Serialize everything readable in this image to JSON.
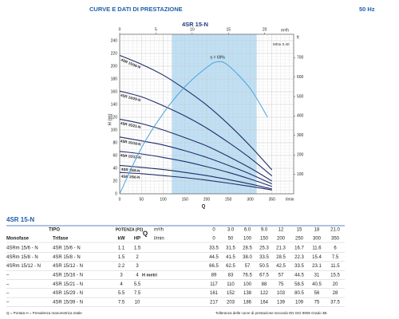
{
  "header": {
    "title": "CURVE E DATI DI PRESTAZIONE",
    "frequency": "50 Hz"
  },
  "chart_data": {
    "type": "line",
    "title": "4SR 15-N",
    "x_label": "Q",
    "x_unit": "l/min",
    "y_label": "H (m)",
    "y2_label": "ft",
    "x2_unit": "m³/h",
    "annotation": "MEI≥ 0.40",
    "x": [
      0,
      50,
      100,
      150,
      200,
      250,
      300,
      350
    ],
    "xlim": [
      0,
      400
    ],
    "xticks": [
      0,
      50,
      100,
      150,
      200,
      250,
      300,
      350
    ],
    "ylim": [
      0,
      240
    ],
    "yticks": [
      0,
      20,
      40,
      60,
      80,
      100,
      120,
      140,
      160,
      180,
      200,
      220,
      240
    ],
    "y2lim": [
      0,
      787
    ],
    "y2ticks": [
      100,
      200,
      300,
      400,
      500,
      600,
      700
    ],
    "x2lim": [
      0,
      24
    ],
    "x2ticks": [
      0,
      5,
      10,
      15,
      20
    ],
    "grid": true,
    "shaded_range": [
      120,
      315
    ],
    "shaded_color": "#bfe0f5",
    "series": [
      {
        "name": "4SR 15/39-N",
        "color": "#1f2d6b",
        "values": [
          217,
          203,
          186,
          164,
          139,
          109,
          75,
          37.5
        ]
      },
      {
        "name": "4SR 15/29-N",
        "color": "#1f2d6b",
        "values": [
          161,
          152,
          138,
          122,
          103,
          80.5,
          56,
          28
        ]
      },
      {
        "name": "4SR 15/21-N",
        "color": "#1f2d6b",
        "values": [
          117,
          110,
          100,
          88,
          75,
          58.5,
          40.5,
          20
        ]
      },
      {
        "name": "4SR 15/16-N",
        "color": "#1f2d6b",
        "values": [
          89,
          83,
          76.5,
          67.5,
          57,
          44.5,
          31,
          15.5
        ]
      },
      {
        "name": "4SR 15/12-N",
        "color": "#1f2d6b",
        "values": [
          66.5,
          62.5,
          57,
          50.5,
          42.5,
          33.5,
          23.1,
          11.5
        ]
      },
      {
        "name": "4SR 15/8-N",
        "color": "#1f2d6b",
        "values": [
          44.5,
          41.5,
          38.0,
          33.5,
          28.5,
          22.3,
          15.4,
          7.5
        ]
      },
      {
        "name": "4SR 15/6-N",
        "color": "#1f2d6b",
        "values": [
          33.5,
          31.5,
          28.5,
          25.3,
          21.3,
          16.7,
          11.6,
          6
        ]
      }
    ],
    "efficiency": {
      "label": "η = 69%",
      "color": "#4aa3df",
      "ylim": [
        0,
        80
      ],
      "x": [
        0,
        50,
        100,
        150,
        200,
        225,
        250,
        300,
        340
      ],
      "values": [
        0,
        24,
        42,
        56,
        66,
        69,
        67,
        55,
        40
      ]
    }
  },
  "table": {
    "title": "4SR 15-N",
    "tipo": "TIPO",
    "monofase": "Monofase",
    "trifase": "Trifase",
    "potenza": "POTENZA (P2)",
    "kw": "kW",
    "hp": "HP",
    "q": "Q",
    "q_unit_m3h": "m³/h",
    "q_unit_lmin": "l/min",
    "h_label": "H metri",
    "q_m3h": [
      "0",
      "3.0",
      "6.0",
      "9.0",
      "12",
      "15",
      "18",
      "21.0"
    ],
    "q_lmin": [
      "0",
      "50",
      "100",
      "150",
      "200",
      "250",
      "300",
      "350"
    ],
    "rows": [
      [
        "4SRm 15/6  - N",
        "4SR 15/6  - N",
        "1.1",
        "1.5",
        "33.5",
        "31.5",
        "28.5",
        "25.3",
        "21.3",
        "16.7",
        "11.6",
        "6"
      ],
      [
        "4SRm 15/8  - N",
        "4SR 15/8  - N",
        "1.5",
        "2",
        "44.5",
        "41.5",
        "38.0",
        "33.5",
        "28.5",
        "22.3",
        "15.4",
        "7.5"
      ],
      [
        "4SRm 15/12 - N",
        "4SR 15/12 - N",
        "2.2",
        "3",
        "66.5",
        "62.5",
        "57",
        "50.5",
        "42.5",
        "33.5",
        "23.1",
        "11.5"
      ],
      [
        "–",
        "4SR 15/16 - N",
        "3",
        "4",
        "89",
        "83",
        "76.5",
        "67.5",
        "57",
        "44.5",
        "31",
        "15.5"
      ],
      [
        "–",
        "4SR 15/21 - N",
        "4",
        "5.5",
        "117",
        "110",
        "100",
        "88",
        "75",
        "58.5",
        "40.5",
        "20"
      ],
      [
        "–",
        "4SR 15/29 - N",
        "5.5",
        "7.5",
        "161",
        "152",
        "138",
        "122",
        "103",
        "80.5",
        "56",
        "28"
      ],
      [
        "–",
        "4SR 15/39 - N",
        "7.5",
        "10",
        "217",
        "203",
        "186",
        "164",
        "139",
        "109",
        "75",
        "37.5"
      ]
    ]
  },
  "footer": {
    "legend": "Q = Portata   H = Prevalenza manometrica totale",
    "tolerance": "Tolleranza delle curve di prestazione secondo EN ISO 9906 Grado 3B."
  }
}
